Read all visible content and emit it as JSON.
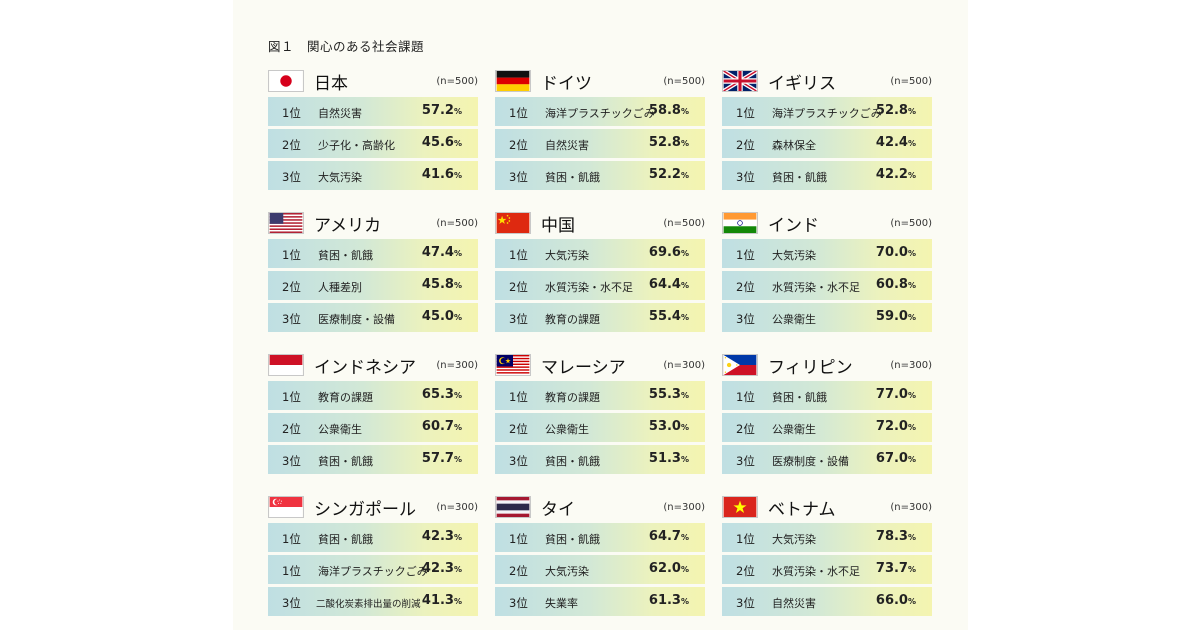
{
  "figure_title": "図１　関心のある社会課題",
  "percent_sign": "%",
  "countries": [
    {
      "name": "日本",
      "n": "(n=500)",
      "flag": "japan-flag",
      "rows": [
        {
          "rank": "1位",
          "issue": "自然災害",
          "pct": "57.2"
        },
        {
          "rank": "2位",
          "issue": "少子化・高齢化",
          "pct": "45.6"
        },
        {
          "rank": "3位",
          "issue": "大気汚染",
          "pct": "41.6"
        }
      ]
    },
    {
      "name": "ドイツ",
      "n": "(n=500)",
      "flag": "germany-flag",
      "rows": [
        {
          "rank": "1位",
          "issue": "海洋プラスチックごみ",
          "pct": "58.8"
        },
        {
          "rank": "2位",
          "issue": "自然災害",
          "pct": "52.8"
        },
        {
          "rank": "3位",
          "issue": "貧困・飢餓",
          "pct": "52.2"
        }
      ]
    },
    {
      "name": "イギリス",
      "n": "(n=500)",
      "flag": "uk-flag",
      "rows": [
        {
          "rank": "1位",
          "issue": "海洋プラスチックごみ",
          "pct": "52.8"
        },
        {
          "rank": "2位",
          "issue": "森林保全",
          "pct": "42.4"
        },
        {
          "rank": "3位",
          "issue": "貧困・飢餓",
          "pct": "42.2"
        }
      ]
    },
    {
      "name": "アメリカ",
      "n": "(n=500)",
      "flag": "usa-flag",
      "rows": [
        {
          "rank": "1位",
          "issue": "貧困・飢餓",
          "pct": "47.4"
        },
        {
          "rank": "2位",
          "issue": "人種差別",
          "pct": "45.8"
        },
        {
          "rank": "3位",
          "issue": "医療制度・設備",
          "pct": "45.0"
        }
      ]
    },
    {
      "name": "中国",
      "n": "(n=500)",
      "flag": "china-flag",
      "rows": [
        {
          "rank": "1位",
          "issue": "大気汚染",
          "pct": "69.6"
        },
        {
          "rank": "2位",
          "issue": "水質汚染・水不足",
          "pct": "64.4"
        },
        {
          "rank": "3位",
          "issue": "教育の課題",
          "pct": "55.4"
        }
      ]
    },
    {
      "name": "インド",
      "n": "(n=500)",
      "flag": "india-flag",
      "rows": [
        {
          "rank": "1位",
          "issue": "大気汚染",
          "pct": "70.0"
        },
        {
          "rank": "2位",
          "issue": "水質汚染・水不足",
          "pct": "60.8"
        },
        {
          "rank": "3位",
          "issue": "公衆衛生",
          "pct": "59.0"
        }
      ]
    },
    {
      "name": "インドネシア",
      "n": "(n=300)",
      "flag": "indonesia-flag",
      "rows": [
        {
          "rank": "1位",
          "issue": "教育の課題",
          "pct": "65.3"
        },
        {
          "rank": "2位",
          "issue": "公衆衛生",
          "pct": "60.7"
        },
        {
          "rank": "3位",
          "issue": "貧困・飢餓",
          "pct": "57.7"
        }
      ]
    },
    {
      "name": "マレーシア",
      "n": "(n=300)",
      "flag": "malaysia-flag",
      "rows": [
        {
          "rank": "1位",
          "issue": "教育の課題",
          "pct": "55.3"
        },
        {
          "rank": "2位",
          "issue": "公衆衛生",
          "pct": "53.0"
        },
        {
          "rank": "3位",
          "issue": "貧困・飢餓",
          "pct": "51.3"
        }
      ]
    },
    {
      "name": "フィリピン",
      "n": "(n=300)",
      "flag": "philippines-flag",
      "rows": [
        {
          "rank": "1位",
          "issue": "貧困・飢餓",
          "pct": "77.0"
        },
        {
          "rank": "2位",
          "issue": "公衆衛生",
          "pct": "72.0"
        },
        {
          "rank": "3位",
          "issue": "医療制度・設備",
          "pct": "67.0"
        }
      ]
    },
    {
      "name": "シンガポール",
      "n": "(n=300)",
      "flag": "singapore-flag",
      "rows": [
        {
          "rank": "1位",
          "issue": "貧困・飢餓",
          "pct": "42.3"
        },
        {
          "rank": "1位",
          "issue": "海洋プラスチックごみ",
          "pct": "42.3"
        },
        {
          "rank": "3位",
          "issue": "二酸化炭素排出量の削減",
          "pct": "41.3"
        }
      ]
    },
    {
      "name": "タイ",
      "n": "(n=300)",
      "flag": "thailand-flag",
      "rows": [
        {
          "rank": "1位",
          "issue": "貧困・飢餓",
          "pct": "64.7"
        },
        {
          "rank": "2位",
          "issue": "大気汚染",
          "pct": "62.0"
        },
        {
          "rank": "3位",
          "issue": "失業率",
          "pct": "61.3"
        }
      ]
    },
    {
      "name": "ベトナム",
      "n": "(n=300)",
      "flag": "vietnam-flag",
      "rows": [
        {
          "rank": "1位",
          "issue": "大気汚染",
          "pct": "78.3"
        },
        {
          "rank": "2位",
          "issue": "水質汚染・水不足",
          "pct": "73.7"
        },
        {
          "rank": "3位",
          "issue": "自然災害",
          "pct": "66.0"
        }
      ]
    }
  ]
}
